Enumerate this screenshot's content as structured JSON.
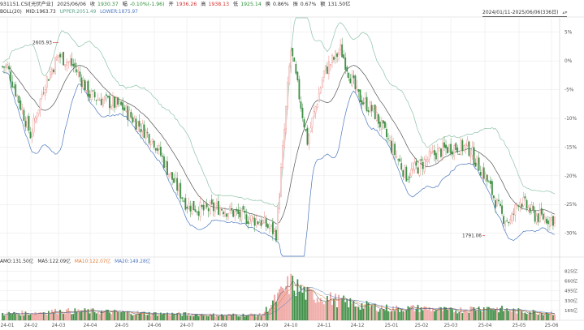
{
  "header": {
    "code": "931151.CSI[光伏产业]",
    "date": "2025/06/06",
    "close_label": "收",
    "close": "1930.37",
    "change_label": "幅",
    "change": "-0.10%(-1.96)",
    "open_label": "开",
    "open": "1936.26",
    "high_label": "高",
    "high": "1938.13",
    "low_label": "低",
    "low": "1925.14",
    "turnover_label": "换",
    "turnover": "0.86%",
    "amplitude_label": "振",
    "amplitude": "0.67%",
    "amount_label": "额",
    "amount": "131.50亿"
  },
  "boll": {
    "label": "BOLL(20)",
    "mid": "MID:1963.73",
    "upper": "UPPER:2051.49",
    "lower": "LOWER:1875.97"
  },
  "range": {
    "text": "2024/01/11-2025/06/06(336日)",
    "icon": "scroll-arrows-icon"
  },
  "amo": {
    "amo": "AMO:131.50亿",
    "ma5": "MA5:122.09亿",
    "ma10": "MA10:122.07亿",
    "ma20": "MA20:149.28亿"
  },
  "colors": {
    "up": "#e8837e",
    "down": "#3f8f46",
    "mid": "#555555",
    "upper": "#8ec3a8",
    "lower": "#4b77be",
    "grid": "#e6e6e6"
  },
  "chart_data": [
    {
      "type": "candlestick",
      "x_ticks": [
        "24-01",
        "24-02",
        "24-03",
        "24-04",
        "24-05",
        "24-06",
        "24-07",
        "24-08",
        "24-09",
        "24-10",
        "24-11",
        "24-12",
        "25-01",
        "25-02",
        "25-03",
        "25-04",
        "25-05",
        "25-06"
      ],
      "y_ticks": [
        "5%",
        "0%",
        "-5%",
        "-10%",
        "-15%",
        "-20%",
        "-25%",
        "-30%"
      ],
      "y_range_pct": [
        -34,
        7.5
      ],
      "annotations": [
        {
          "text": "2605.93",
          "x": "24-03",
          "value_pct": 3.2
        },
        {
          "text": "1791.06",
          "x": "25-04",
          "value_pct": -30.4
        }
      ],
      "trend_pct": [
        [
          "24-01",
          -1
        ],
        [
          "24-02",
          -13
        ],
        [
          "24-02b",
          -4
        ],
        [
          "24-03",
          1
        ],
        [
          "24-03b",
          -1
        ],
        [
          "24-04",
          -6
        ],
        [
          "24-05",
          -8
        ],
        [
          "24-05b",
          -11
        ],
        [
          "24-06",
          -14
        ],
        [
          "24-06b",
          -20
        ],
        [
          "24-07",
          -25
        ],
        [
          "24-07b",
          -26
        ],
        [
          "24-08",
          -25.5
        ],
        [
          "24-08b",
          -27
        ],
        [
          "24-09",
          -28
        ],
        [
          "24-09b",
          -30
        ],
        [
          "24-10",
          2
        ],
        [
          "24-10b",
          -14
        ],
        [
          "24-11",
          -2
        ],
        [
          "24-11b",
          2
        ],
        [
          "24-12",
          -6
        ],
        [
          "24-12b",
          -9
        ],
        [
          "25-01",
          -15
        ],
        [
          "25-01b",
          -20
        ],
        [
          "25-02",
          -18
        ],
        [
          "25-02b",
          -16
        ],
        [
          "25-03",
          -15
        ],
        [
          "25-03b",
          -15
        ],
        [
          "25-04",
          -20
        ],
        [
          "25-04b",
          -27
        ],
        [
          "25-04c",
          -28
        ],
        [
          "25-05",
          -24
        ],
        [
          "25-05b",
          -27
        ],
        [
          "25-06",
          -27.5
        ]
      ]
    },
    {
      "type": "bar",
      "title": "AMO",
      "y_ticks": [
        "825亿",
        "660亿",
        "495亿",
        "330亿",
        "165亿"
      ],
      "ylim": [
        0,
        900
      ],
      "levels_yi": [
        [
          "24-01",
          110
        ],
        [
          "24-02",
          120
        ],
        [
          "24-03",
          150
        ],
        [
          "24-04",
          150
        ],
        [
          "24-05",
          130
        ],
        [
          "24-06",
          110
        ],
        [
          "24-07",
          100
        ],
        [
          "24-08",
          85
        ],
        [
          "24-09",
          90
        ],
        [
          "24-10",
          620
        ],
        [
          "24-10b",
          430
        ],
        [
          "24-11",
          380
        ],
        [
          "24-11b",
          320
        ],
        [
          "24-12",
          260
        ],
        [
          "25-01",
          190
        ],
        [
          "25-02",
          200
        ],
        [
          "25-03",
          160
        ],
        [
          "25-04",
          210
        ],
        [
          "25-05",
          150
        ],
        [
          "25-06",
          125
        ]
      ]
    }
  ]
}
